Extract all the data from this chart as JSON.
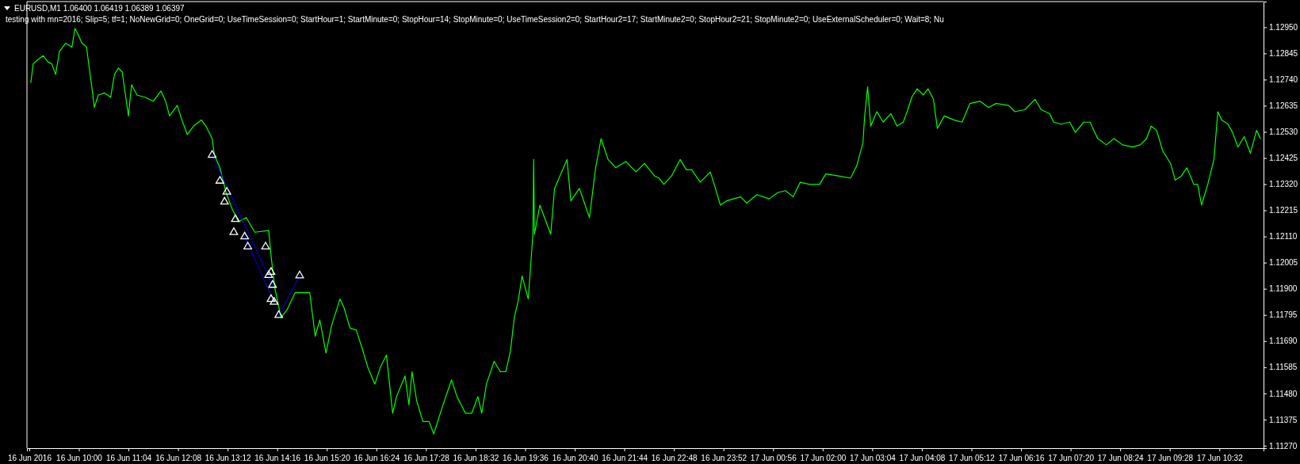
{
  "chart_data": {
    "type": "line",
    "title": "EURUSD,M1  1.06400 1.06419 1.06389 1.06397",
    "subtitle": "testing with mn=2016; Slip=5; tf=1; NoNewGrid=0; OneGrid=0; UseTimeSession=0; StartHour=1; StartMinute=0; StopHour=14; StopMinute=0; UseTimeSession2=0; StartHour2=17; StartMinute2=0; StopHour2=21; StopMinute2=0; UseExternalScheduler=0; Wait=8; Nu",
    "xlim": [
      "2016-06-16T08:53",
      "2016-06-17T11:29"
    ],
    "ylim": [
      1.1126,
      1.13053
    ],
    "xticks": [
      {
        "value": "2016-06-16T08:56",
        "label": "16 Jun 2016"
      },
      {
        "value": "2016-06-16T10:00",
        "label": "16 Jun 10:00"
      },
      {
        "value": "2016-06-16T11:04",
        "label": "16 Jun 11:04"
      },
      {
        "value": "2016-06-16T12:08",
        "label": "16 Jun 12:08"
      },
      {
        "value": "2016-06-16T13:12",
        "label": "16 Jun 13:12"
      },
      {
        "value": "2016-06-16T14:16",
        "label": "16 Jun 14:16"
      },
      {
        "value": "2016-06-16T15:20",
        "label": "16 Jun 15:20"
      },
      {
        "value": "2016-06-16T16:24",
        "label": "16 Jun 16:24"
      },
      {
        "value": "2016-06-16T17:28",
        "label": "16 Jun 17:28"
      },
      {
        "value": "2016-06-16T18:32",
        "label": "16 Jun 18:32"
      },
      {
        "value": "2016-06-16T19:36",
        "label": "16 Jun 19:36"
      },
      {
        "value": "2016-06-16T20:40",
        "label": "16 Jun 20:40"
      },
      {
        "value": "2016-06-16T21:44",
        "label": "16 Jun 21:44"
      },
      {
        "value": "2016-06-16T22:48",
        "label": "16 Jun 22:48"
      },
      {
        "value": "2016-06-16T23:52",
        "label": "16 Jun 23:52"
      },
      {
        "value": "2016-06-17T00:56",
        "label": "17 Jun 00:56"
      },
      {
        "value": "2016-06-17T02:00",
        "label": "17 Jun 02:00"
      },
      {
        "value": "2016-06-17T03:04",
        "label": "17 Jun 03:04"
      },
      {
        "value": "2016-06-17T04:08",
        "label": "17 Jun 04:08"
      },
      {
        "value": "2016-06-17T05:12",
        "label": "17 Jun 05:12"
      },
      {
        "value": "2016-06-17T06:16",
        "label": "17 Jun 06:16"
      },
      {
        "value": "2016-06-17T07:20",
        "label": "17 Jun 07:20"
      },
      {
        "value": "2016-06-17T08:24",
        "label": "17 Jun 08:24"
      },
      {
        "value": "2016-06-17T09:28",
        "label": "17 Jun 09:28"
      },
      {
        "value": "2016-06-17T10:32",
        "label": "17 Jun 10:32"
      }
    ],
    "yticks": [
      {
        "value": 1.1295,
        "label": "1.12950"
      },
      {
        "value": 1.12845,
        "label": "1.12845"
      },
      {
        "value": 1.1274,
        "label": "1.12740"
      },
      {
        "value": 1.12635,
        "label": "1.12635"
      },
      {
        "value": 1.1253,
        "label": "1.12530"
      },
      {
        "value": 1.12425,
        "label": "1.12425"
      },
      {
        "value": 1.1232,
        "label": "1.12320"
      },
      {
        "value": 1.12215,
        "label": "1.12215"
      },
      {
        "value": 1.1211,
        "label": "1.12110"
      },
      {
        "value": 1.12005,
        "label": "1.12005"
      },
      {
        "value": 1.119,
        "label": "1.11900"
      },
      {
        "value": 1.11795,
        "label": "1.11795"
      },
      {
        "value": 1.1169,
        "label": "1.11690"
      },
      {
        "value": 1.11585,
        "label": "1.11585"
      },
      {
        "value": 1.1148,
        "label": "1.11480"
      },
      {
        "value": 1.11375,
        "label": "1.11375"
      },
      {
        "value": 1.1127,
        "label": "1.11270"
      }
    ],
    "grid": false,
    "series": [
      {
        "color": "#00ff00",
        "line_style": "solid",
        "x": [
          "2016-06-16T08:58",
          "2016-06-16T09:01",
          "2016-06-16T09:07",
          "2016-06-16T09:14",
          "2016-06-16T09:20",
          "2016-06-16T09:25",
          "2016-06-16T09:30",
          "2016-06-16T09:35",
          "2016-06-16T09:43",
          "2016-06-16T09:51",
          "2016-06-16T09:55",
          "2016-06-16T09:59",
          "2016-06-16T10:04",
          "2016-06-16T10:10",
          "2016-06-16T10:12",
          "2016-06-16T10:17",
          "2016-06-16T10:20",
          "2016-06-16T10:25",
          "2016-06-16T10:33",
          "2016-06-16T10:41",
          "2016-06-16T10:46",
          "2016-06-16T10:51",
          "2016-06-16T10:56",
          "2016-06-16T10:59",
          "2016-06-16T11:04",
          "2016-06-16T11:08",
          "2016-06-16T11:15",
          "2016-06-16T11:25",
          "2016-06-16T11:36",
          "2016-06-16T11:46",
          "2016-06-16T11:52",
          "2016-06-16T11:57",
          "2016-06-16T12:07",
          "2016-06-16T12:13",
          "2016-06-16T12:20",
          "2016-06-16T12:28",
          "2016-06-16T12:38",
          "2016-06-16T12:44",
          "2016-06-16T12:52",
          "2016-06-16T12:55",
          "2016-06-16T13:02",
          "2016-06-16T13:10",
          "2016-06-16T13:18",
          "2016-06-16T13:26",
          "2016-06-16T13:36",
          "2016-06-16T13:47",
          "2016-06-16T14:05",
          "2016-06-16T14:08",
          "2016-06-16T14:13",
          "2016-06-16T14:21",
          "2016-06-16T14:29",
          "2016-06-16T14:39",
          "2016-06-16T14:50",
          "2016-06-16T14:58",
          "2016-06-16T15:05",
          "2016-06-16T15:11",
          "2016-06-16T15:19",
          "2016-06-16T15:26",
          "2016-06-16T15:37",
          "2016-06-16T15:42",
          "2016-06-16T15:50",
          "2016-06-16T15:58",
          "2016-06-16T16:05",
          "2016-06-16T16:13",
          "2016-06-16T16:22",
          "2016-06-16T16:29",
          "2016-06-16T16:37",
          "2016-06-16T16:45",
          "2016-06-16T16:50",
          "2016-06-16T17:01",
          "2016-06-16T17:06",
          "2016-06-16T17:10",
          "2016-06-16T17:16",
          "2016-06-16T17:24",
          "2016-06-16T17:32",
          "2016-06-16T17:38",
          "2016-06-16T17:50",
          "2016-06-16T18:01",
          "2016-06-16T18:08",
          "2016-06-16T18:19",
          "2016-06-16T18:27",
          "2016-06-16T18:35",
          "2016-06-16T18:40",
          "2016-06-16T18:46",
          "2016-06-16T18:56",
          "2016-06-16T19:04",
          "2016-06-16T19:11",
          "2016-06-16T19:17",
          "2016-06-16T19:22",
          "2016-06-16T19:27",
          "2016-06-16T19:32",
          "2016-06-16T19:40",
          "2016-06-16T19:46",
          "2016-06-16T19:47",
          "2016-06-16T19:48",
          "2016-06-16T19:55",
          "2016-06-16T20:01",
          "2016-06-16T20:09",
          "2016-06-16T20:14",
          "2016-06-16T20:30",
          "2016-06-16T20:35",
          "2016-06-16T20:46",
          "2016-06-16T20:59",
          "2016-06-16T21:07",
          "2016-06-16T21:14",
          "2016-06-16T21:23",
          "2016-06-16T21:33",
          "2016-06-16T21:46",
          "2016-06-16T21:59",
          "2016-06-16T22:10",
          "2016-06-16T22:23",
          "2016-06-16T22:29",
          "2016-06-16T22:35",
          "2016-06-16T22:45",
          "2016-06-16T22:56",
          "2016-06-16T23:04",
          "2016-06-16T23:11",
          "2016-06-16T23:22",
          "2016-06-16T23:35",
          "2016-06-16T23:40",
          "2016-06-16T23:48",
          "2016-06-16T23:56",
          "2016-06-17T00:14",
          "2016-06-17T00:22",
          "2016-06-17T00:35",
          "2016-06-17T00:51",
          "2016-06-17T01:02",
          "2016-06-17T01:12",
          "2016-06-17T01:22",
          "2016-06-17T01:31",
          "2016-06-17T01:43",
          "2016-06-17T01:56",
          "2016-06-17T02:04",
          "2016-06-17T02:20",
          "2016-06-17T02:36",
          "2016-06-17T02:44",
          "2016-06-17T02:52",
          "2016-06-17T02:54",
          "2016-06-17T02:58",
          "2016-06-17T03:02",
          "2016-06-17T03:10",
          "2016-06-17T03:18",
          "2016-06-17T03:28",
          "2016-06-17T03:36",
          "2016-06-17T03:44",
          "2016-06-17T03:49",
          "2016-06-17T03:55",
          "2016-06-17T04:02",
          "2016-06-17T04:10",
          "2016-06-17T04:16",
          "2016-06-17T04:23",
          "2016-06-17T04:28",
          "2016-06-17T04:37",
          "2016-06-17T04:49",
          "2016-06-17T05:00",
          "2016-06-17T05:10",
          "2016-06-17T05:23",
          "2016-06-17T05:34",
          "2016-06-17T05:44",
          "2016-06-17T06:00",
          "2016-06-17T06:08",
          "2016-06-17T06:21",
          "2016-06-17T06:34",
          "2016-06-17T06:42",
          "2016-06-17T06:53",
          "2016-06-17T06:58",
          "2016-06-17T07:08",
          "2016-06-17T07:19",
          "2016-06-17T07:26",
          "2016-06-17T07:37",
          "2016-06-17T07:45",
          "2016-06-17T07:55",
          "2016-06-17T08:06",
          "2016-06-17T08:16",
          "2016-06-17T08:27",
          "2016-06-17T08:40",
          "2016-06-17T08:50",
          "2016-06-17T08:58",
          "2016-06-17T09:04",
          "2016-06-17T09:11",
          "2016-06-17T09:19",
          "2016-06-17T09:29",
          "2016-06-17T09:35",
          "2016-06-17T09:43",
          "2016-06-17T09:50",
          "2016-06-17T09:59",
          "2016-06-17T10:04",
          "2016-06-17T10:09",
          "2016-06-17T10:17",
          "2016-06-17T10:25",
          "2016-06-17T10:30",
          "2016-06-17T10:35",
          "2016-06-17T10:43",
          "2016-06-17T10:49",
          "2016-06-17T10:56",
          "2016-06-17T11:04",
          "2016-06-17T11:12",
          "2016-06-17T11:20",
          "2016-06-17T11:25"
        ],
        "values": [
          1.12728,
          1.12803,
          1.1282,
          1.12836,
          1.12811,
          1.12803,
          1.12761,
          1.12853,
          1.12886,
          1.1287,
          1.12945,
          1.1292,
          1.12886,
          1.1287,
          1.1282,
          1.12703,
          1.12628,
          1.12678,
          1.12686,
          1.12669,
          1.12761,
          1.12786,
          1.1277,
          1.12703,
          1.12594,
          1.12719,
          1.12678,
          1.12669,
          1.12653,
          1.12694,
          1.12653,
          1.12594,
          1.12636,
          1.12578,
          1.12519,
          1.12553,
          1.12578,
          1.12553,
          1.12503,
          1.12436,
          1.12386,
          1.12286,
          1.12219,
          1.12169,
          1.12186,
          1.12127,
          1.12134,
          1.12034,
          1.11901,
          1.11784,
          1.11817,
          1.11884,
          1.11884,
          1.11884,
          1.11709,
          1.11775,
          1.11642,
          1.1175,
          1.11859,
          1.11826,
          1.11742,
          1.11734,
          1.11667,
          1.11584,
          1.11517,
          1.11584,
          1.11634,
          1.114,
          1.11467,
          1.1155,
          1.11434,
          1.11567,
          1.1145,
          1.11367,
          1.11367,
          1.11317,
          1.11434,
          1.11534,
          1.11467,
          1.114,
          1.114,
          1.11467,
          1.114,
          1.11517,
          1.11609,
          1.11567,
          1.11567,
          1.1165,
          1.11784,
          1.11851,
          1.11951,
          1.11859,
          1.12117,
          1.12419,
          1.12119,
          1.12236,
          1.12186,
          1.12119,
          1.12303,
          1.12419,
          1.12253,
          1.12303,
          1.12186,
          1.12386,
          1.12503,
          1.12419,
          1.12386,
          1.12411,
          1.12369,
          1.12403,
          1.12353,
          1.12344,
          1.12319,
          1.12353,
          1.12419,
          1.12378,
          1.12378,
          1.12328,
          1.12369,
          1.12319,
          1.12236,
          1.12253,
          1.12269,
          1.12244,
          1.12278,
          1.12261,
          1.12286,
          1.12294,
          1.12269,
          1.12328,
          1.12319,
          1.12319,
          1.12361,
          1.12353,
          1.12344,
          1.12394,
          1.12486,
          1.12586,
          1.12711,
          1.12553,
          1.12611,
          1.12569,
          1.12603,
          1.12553,
          1.12569,
          1.12611,
          1.12669,
          1.12703,
          1.12678,
          1.12703,
          1.12661,
          1.12544,
          1.12594,
          1.12578,
          1.12569,
          1.12644,
          1.12653,
          1.12628,
          1.12644,
          1.12636,
          1.12611,
          1.12619,
          1.12661,
          1.12619,
          1.12603,
          1.12569,
          1.12561,
          1.12569,
          1.12528,
          1.12569,
          1.12569,
          1.12503,
          1.12478,
          1.12503,
          1.12478,
          1.12469,
          1.12478,
          1.12503,
          1.12553,
          1.12536,
          1.12453,
          1.12403,
          1.12336,
          1.12353,
          1.12386,
          1.12319,
          1.12319,
          1.12236,
          1.12319,
          1.12419,
          1.12611,
          1.12578,
          1.12561,
          1.12528,
          1.12469,
          1.12511,
          1.12444,
          1.12536,
          1.12503
        ]
      },
      {
        "type": "line",
        "color": "#0000ff",
        "line_style": "dotted",
        "x": [
          "2016-06-16T12:52",
          "2016-06-16T14:10",
          null,
          "2016-06-16T13:34",
          "2016-06-16T14:12",
          null,
          "2016-06-16T14:18",
          "2016-06-16T14:45"
        ],
        "values": [
          1.12437,
          1.11915,
          null,
          1.12109,
          1.11847,
          null,
          1.11794,
          1.11953
        ]
      },
      {
        "type": "scatter",
        "color": "#ffffff",
        "marker": "triangle",
        "x": [
          "2016-06-16T12:52",
          "2016-06-16T13:02",
          "2016-06-16T13:11",
          "2016-06-16T13:08",
          "2016-06-16T13:22",
          "2016-06-16T13:20",
          "2016-06-16T13:34",
          "2016-06-16T13:38",
          "2016-06-16T14:01",
          "2016-06-16T14:08",
          "2016-06-16T14:05",
          "2016-06-16T14:10",
          "2016-06-16T14:08",
          "2016-06-16T14:12",
          "2016-06-16T14:18",
          "2016-06-16T14:45"
        ],
        "values": [
          1.12437,
          1.12333,
          1.12289,
          1.12249,
          1.12179,
          1.12127,
          1.12109,
          1.12069,
          1.12069,
          1.11967,
          1.11954,
          1.11915,
          1.11858,
          1.11847,
          1.11794,
          1.11953
        ]
      }
    ]
  }
}
